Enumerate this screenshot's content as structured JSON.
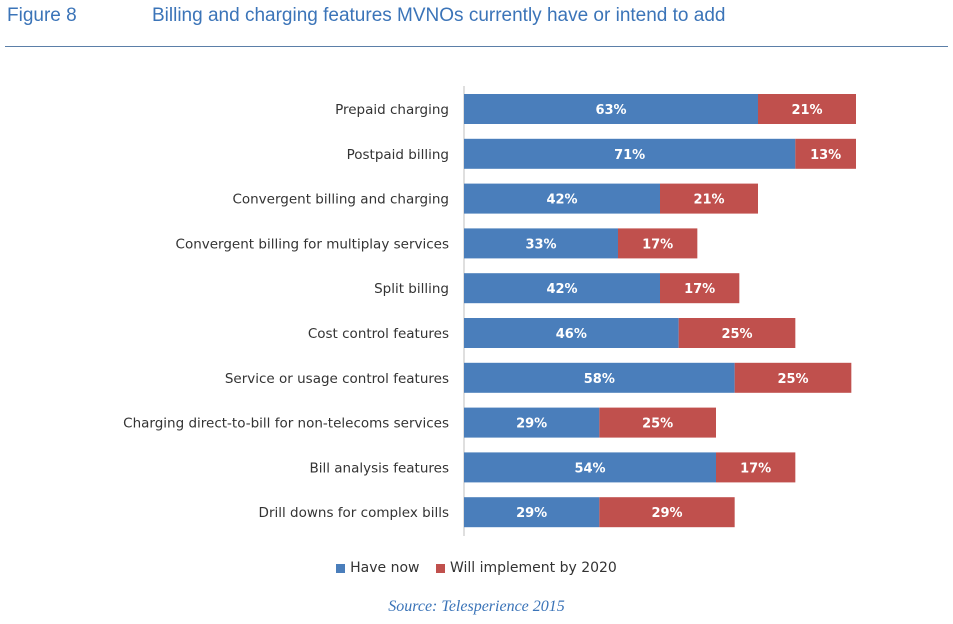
{
  "header": {
    "figure_label": "Figure 8",
    "title": "Billing and charging features MVNOs currently have or intend to add"
  },
  "colors": {
    "have_now": "#4a7ebb",
    "will_implement": "#c0504d",
    "accent": "#3b74b8"
  },
  "chart_data": {
    "type": "bar",
    "orientation": "horizontal",
    "stacked": true,
    "categories": [
      "Prepaid charging",
      "Postpaid billing",
      "Convergent billing and charging",
      "Convergent billing for multiplay services",
      "Split billing",
      "Cost control features",
      "Service or usage control features",
      "Charging direct-to-bill for non-telecoms services",
      "Bill analysis features",
      "Drill downs for complex bills"
    ],
    "series": [
      {
        "name": "Have now",
        "values": [
          63,
          71,
          42,
          33,
          42,
          46,
          58,
          29,
          54,
          29
        ]
      },
      {
        "name": "Will implement by 2020",
        "values": [
          21,
          13,
          21,
          17,
          17,
          25,
          25,
          25,
          17,
          29
        ]
      }
    ],
    "value_suffix": "%",
    "xlim": [
      0,
      84
    ],
    "grid": false,
    "legend_position": "bottom"
  },
  "source": "Source: Telesperience 2015"
}
